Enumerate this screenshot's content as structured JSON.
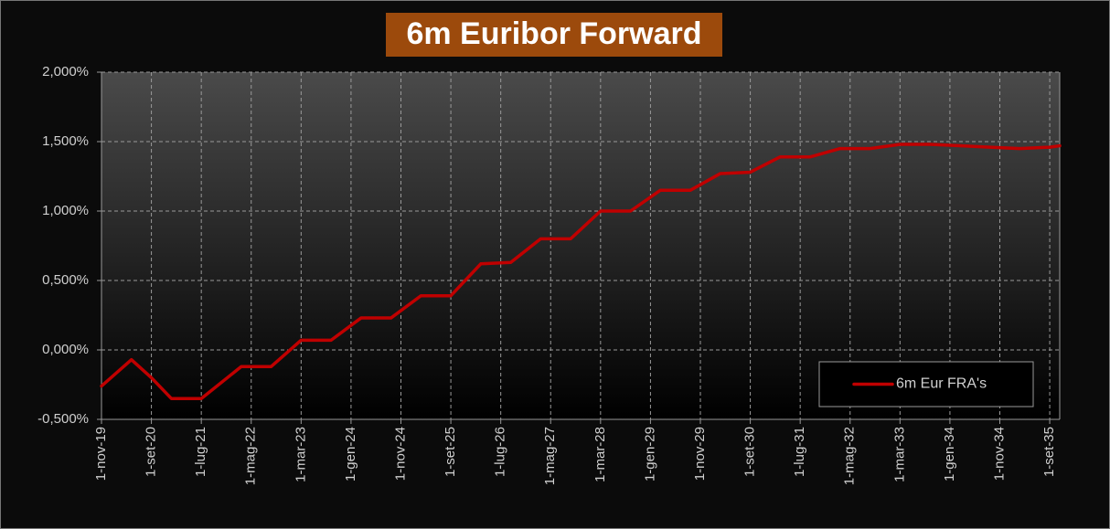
{
  "chart_data": {
    "type": "line",
    "title": "6m Euribor Forward",
    "x": [
      "1-nov-19",
      "1-mag-20",
      "1-set-20",
      "1-gen-21",
      "1-lug-21",
      "1-mar-22",
      "1-set-22",
      "1-mar-23",
      "1-set-23",
      "1-mar-24",
      "1-set-24",
      "1-mar-25",
      "1-set-25",
      "1-mar-26",
      "1-set-26",
      "1-mar-27",
      "1-set-27",
      "1-mar-28",
      "1-set-28",
      "1-mar-29",
      "1-set-29",
      "1-mar-30",
      "1-set-30",
      "1-mar-31",
      "1-set-31",
      "1-mar-32",
      "1-set-32",
      "1-mar-33",
      "1-set-33",
      "1-mar-34",
      "1-set-34",
      "1-mar-35",
      "1-set-35",
      "1-nov-35"
    ],
    "series": [
      {
        "name": "6m Eur FRA's",
        "color": "#c00000",
        "values": [
          -0.26,
          -0.07,
          -0.2,
          -0.35,
          -0.35,
          -0.12,
          -0.12,
          0.07,
          0.07,
          0.23,
          0.23,
          0.39,
          0.39,
          0.62,
          0.63,
          0.8,
          0.8,
          1.0,
          1.0,
          1.15,
          1.15,
          1.27,
          1.28,
          1.39,
          1.39,
          1.45,
          1.45,
          1.48,
          1.48,
          1.47,
          1.46,
          1.45,
          1.46,
          1.47
        ]
      }
    ],
    "xlim": [
      "1-nov-19",
      "1-nov-35"
    ],
    "xticks": [
      "1-nov-19",
      "1-set-20",
      "1-lug-21",
      "1-mag-22",
      "1-mar-23",
      "1-gen-24",
      "1-nov-24",
      "1-set-25",
      "1-lug-26",
      "1-mag-27",
      "1-mar-28",
      "1-gen-29",
      "1-nov-29",
      "1-set-30",
      "1-lug-31",
      "1-mag-32",
      "1-mar-33",
      "1-gen-34",
      "1-nov-34",
      "1-set-35"
    ],
    "ylim": [
      -0.5,
      2
    ],
    "yticks": [
      {
        "value": -0.5,
        "label": "-0,500%"
      },
      {
        "value": 0,
        "label": "0,000%"
      },
      {
        "value": 0.5,
        "label": "0,500%"
      },
      {
        "value": 1,
        "label": "1,000%"
      },
      {
        "value": 1.5,
        "label": "1,500%"
      },
      {
        "value": 2,
        "label": "2,000%"
      }
    ],
    "grid": true,
    "legend": "lower right"
  }
}
